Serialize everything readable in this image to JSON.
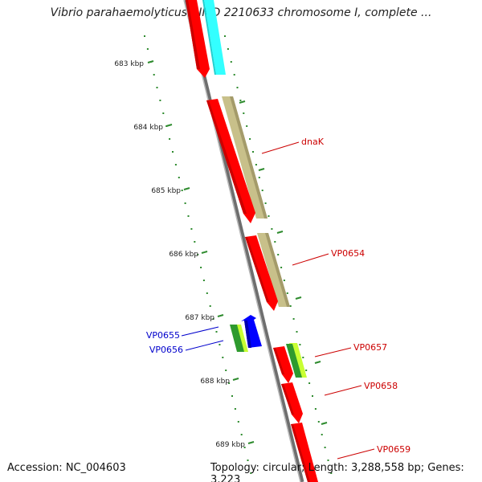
{
  "title": "Vibrio parahaemolyticus RIMD 2210633 chromosome I, complete ...",
  "scale_labels": [
    "683 kbp",
    "684 kbp",
    "685 kbp",
    "686 kbp",
    "687 kbp",
    "688 kbp",
    "689 kbp"
  ],
  "gene_labels": [
    {
      "text": "dnaK",
      "strand": "forward"
    },
    {
      "text": "VP0654",
      "strand": "forward"
    },
    {
      "text": "VP0655",
      "strand": "reverse"
    },
    {
      "text": "VP0656",
      "strand": "reverse"
    },
    {
      "text": "VP0657",
      "strand": "forward"
    },
    {
      "text": "VP0658",
      "strand": "forward"
    },
    {
      "text": "VP0659",
      "strand": "forward"
    }
  ],
  "footer": {
    "accession": "Accession: NC_004603",
    "summary": "Topology: circular; Length: 3,288,558 bp; Genes: 3,223"
  },
  "colors": {
    "backbone": "#8a8a8a",
    "forward_cds": "#ff0000",
    "reverse_cds": "#0000ff",
    "forward_label": "#cc0000",
    "reverse_label": "#0000cc",
    "tick_major": "#2e8b2e",
    "tick_minor": "#2e8b2e",
    "cyan_gc": "#33ffff",
    "khaki_gc": "#c8c08a",
    "green_gc": "#2e9a2e",
    "lime_gc": "#c8ff33"
  }
}
